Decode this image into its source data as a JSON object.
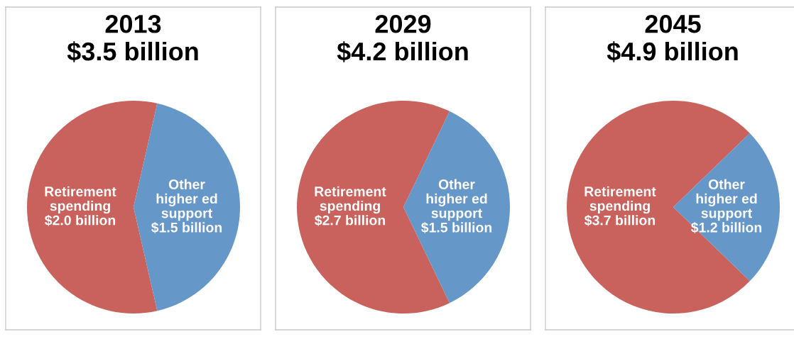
{
  "chart_data": [
    {
      "type": "pie",
      "title": "2013",
      "subtitle": "$3.5 billion",
      "categories": [
        "Retirement\nspending",
        "Other\nhigher ed\nsupport"
      ],
      "values": [
        2.0,
        1.5
      ],
      "colors": [
        "#c9625c",
        "#6597c9"
      ],
      "value_labels": [
        "$2.0 billion",
        "$1.5 billion"
      ]
    },
    {
      "type": "pie",
      "title": "2029",
      "subtitle": "$4.2 billion",
      "categories": [
        "Retirement\nspending",
        "Other\nhigher ed\nsupport"
      ],
      "values": [
        2.7,
        1.5
      ],
      "colors": [
        "#c9625c",
        "#6597c9"
      ],
      "value_labels": [
        "$2.7 billion",
        "$1.5 billion"
      ]
    },
    {
      "type": "pie",
      "title": "2045",
      "subtitle": "$4.9 billion",
      "categories": [
        "Retirement\nspending",
        "Other\nhigher ed\nsupport"
      ],
      "values": [
        3.7,
        1.2
      ],
      "colors": [
        "#c9625c",
        "#6597c9"
      ],
      "value_labels": [
        "$3.7 billion",
        "$1.2 billion"
      ]
    }
  ]
}
